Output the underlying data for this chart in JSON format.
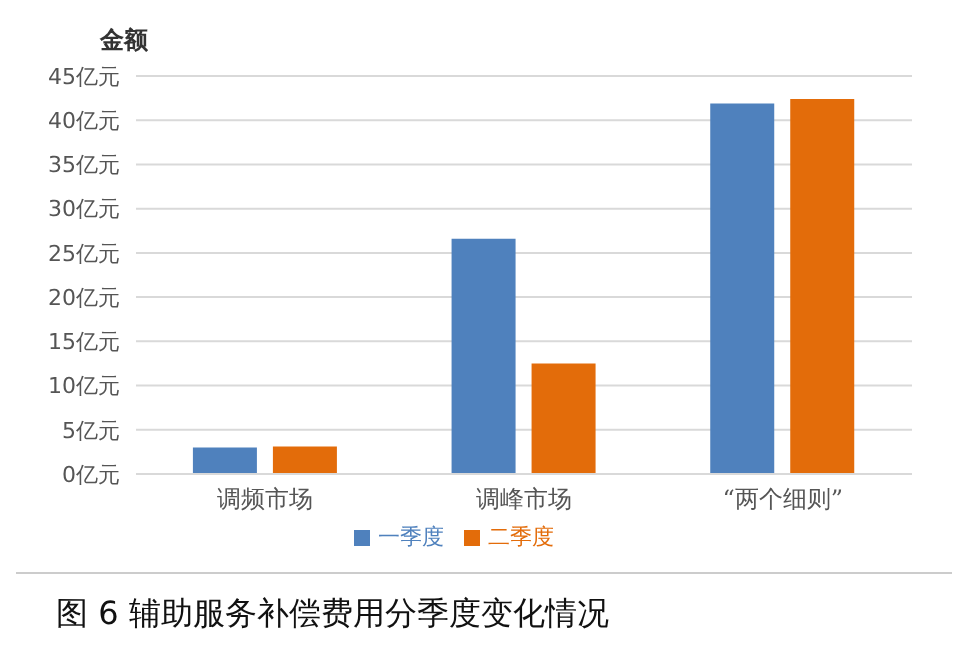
{
  "chart_data": {
    "type": "bar",
    "title": "图 6   辅助服务补偿费用分季度变化情况",
    "ylabel": "金额",
    "categories": [
      "调频市场",
      "调峰市场",
      "“两个细则”"
    ],
    "series": [
      {
        "name": "一季度",
        "color": "#4f81bd",
        "values": [
          3.0,
          26.6,
          41.9
        ]
      },
      {
        "name": "二季度",
        "color": "#e36c0a",
        "values": [
          3.1,
          12.5,
          42.4
        ]
      }
    ],
    "ylim": [
      0,
      45
    ],
    "yticks": [
      {
        "value": 0,
        "label": "0亿元"
      },
      {
        "value": 5,
        "label": "5亿元"
      },
      {
        "value": 10,
        "label": "10亿元"
      },
      {
        "value": 15,
        "label": "15亿元"
      },
      {
        "value": 20,
        "label": "20亿元"
      },
      {
        "value": 25,
        "label": "25亿元"
      },
      {
        "value": 30,
        "label": "30亿元"
      },
      {
        "value": 35,
        "label": "35亿元"
      },
      {
        "value": 40,
        "label": "40亿元"
      },
      {
        "value": 45,
        "label": "45亿元"
      }
    ],
    "grid": "y",
    "legend": "bottom"
  }
}
